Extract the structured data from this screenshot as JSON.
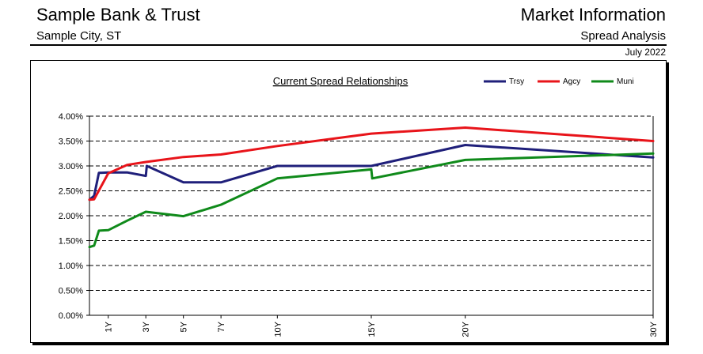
{
  "header": {
    "bank_name": "Sample Bank & Trust",
    "city": "Sample City, ST",
    "report_title": "Market Information",
    "report_subtitle": "Spread Analysis",
    "report_date": "July 2022"
  },
  "chart_data": {
    "type": "line",
    "title": "Current Spread Relationships",
    "xlabel": "",
    "ylabel": "",
    "ylim": [
      0,
      4.0
    ],
    "y_ticks": [
      "0.00%",
      "0.50%",
      "1.00%",
      "1.50%",
      "2.00%",
      "2.50%",
      "3.00%",
      "3.50%",
      "4.00%"
    ],
    "x_ticks": [
      {
        "label": "1Y",
        "x": 1
      },
      {
        "label": "3Y",
        "x": 3
      },
      {
        "label": "5Y",
        "x": 5
      },
      {
        "label": "7Y",
        "x": 7
      },
      {
        "label": "10Y",
        "x": 10
      },
      {
        "label": "15Y",
        "x": 15
      },
      {
        "label": "20Y",
        "x": 20
      },
      {
        "label": "30Y",
        "x": 30
      }
    ],
    "xlim": [
      0,
      30
    ],
    "grid": true,
    "legend_position": "top-right",
    "series": [
      {
        "name": "Trsy",
        "color": "#1f1f7a",
        "points": [
          [
            0.0,
            2.32
          ],
          [
            0.25,
            2.4
          ],
          [
            0.5,
            2.86
          ],
          [
            1.0,
            2.87
          ],
          [
            2.0,
            2.87
          ],
          [
            3.0,
            2.8
          ],
          [
            3.05,
            3.0
          ],
          [
            5.0,
            2.67
          ],
          [
            7.0,
            2.67
          ],
          [
            10.0,
            3.0
          ],
          [
            15.0,
            3.0
          ],
          [
            20.0,
            3.42
          ],
          [
            30.0,
            3.17
          ]
        ]
      },
      {
        "name": "Agcy",
        "color": "#e8141a",
        "points": [
          [
            0.0,
            2.32
          ],
          [
            0.25,
            2.33
          ],
          [
            1.0,
            2.85
          ],
          [
            2.0,
            3.02
          ],
          [
            3.0,
            3.08
          ],
          [
            5.0,
            3.18
          ],
          [
            7.0,
            3.23
          ],
          [
            10.0,
            3.4
          ],
          [
            15.0,
            3.65
          ],
          [
            20.0,
            3.77
          ],
          [
            30.0,
            3.5
          ]
        ]
      },
      {
        "name": "Muni",
        "color": "#0f8a1a",
        "points": [
          [
            0.0,
            1.37
          ],
          [
            0.25,
            1.4
          ],
          [
            0.5,
            1.7
          ],
          [
            1.0,
            1.71
          ],
          [
            2.0,
            1.9
          ],
          [
            3.0,
            2.08
          ],
          [
            5.0,
            1.99
          ],
          [
            7.0,
            2.22
          ],
          [
            10.0,
            2.75
          ],
          [
            15.0,
            2.93
          ],
          [
            15.05,
            2.75
          ],
          [
            20.0,
            3.12
          ],
          [
            30.0,
            3.25
          ]
        ]
      }
    ]
  }
}
